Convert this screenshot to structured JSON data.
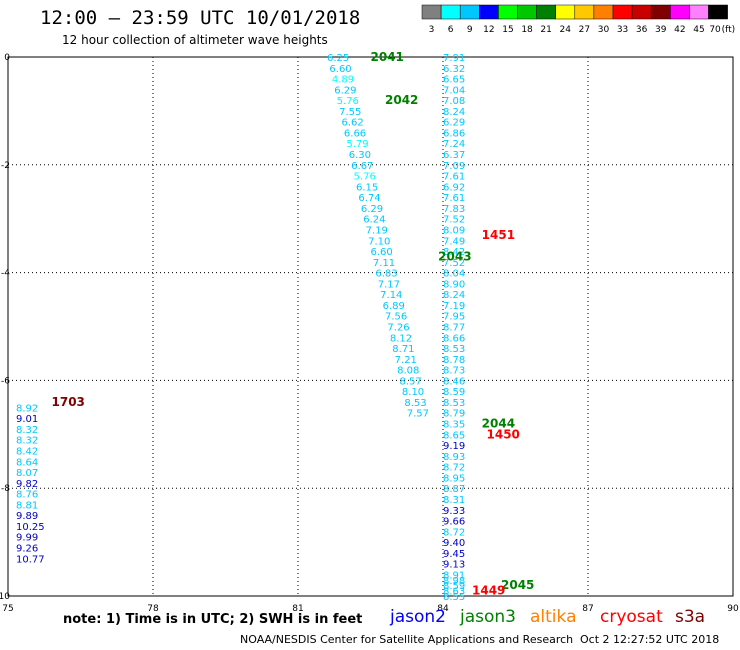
{
  "title": "12:00 – 23:59 UTC 10/01/2018",
  "subtitle": "12 hour collection of altimeter wave heights",
  "color_scale": {
    "labels": [
      "3",
      "6",
      "9",
      "12",
      "15",
      "18",
      "21",
      "24",
      "27",
      "30",
      "33",
      "36",
      "39",
      "42",
      "45",
      "70"
    ],
    "unit": "(ft)",
    "colors": [
      "#808080",
      "#00ffff",
      "#00c8ff",
      "#0000ff",
      "#00ff00",
      "#00c800",
      "#008000",
      "#ffff00",
      "#ffc800",
      "#ff8000",
      "#ff0000",
      "#c80000",
      "#800000",
      "#ff00ff",
      "#ff80ff",
      "#000000"
    ]
  },
  "chart_data": {
    "type": "scatter",
    "xlim": [
      75,
      90
    ],
    "ylim": [
      0,
      -10
    ],
    "x_ticks": [
      "75",
      "78",
      "81",
      "84",
      "87",
      "90"
    ],
    "y_ticks": [
      "0",
      "-2",
      "-4",
      "-6",
      "-8",
      "-10"
    ],
    "grid": true,
    "points": [
      {
        "x": 81.6,
        "y": 0.0,
        "v": "6.25",
        "c": "#00c8ff"
      },
      {
        "x": 81.65,
        "y": -0.2,
        "v": "6.60",
        "c": "#00c8ff"
      },
      {
        "x": 81.7,
        "y": -0.4,
        "v": "4.89",
        "c": "#00ffff"
      },
      {
        "x": 81.75,
        "y": -0.6,
        "v": "6.29",
        "c": "#00c8ff"
      },
      {
        "x": 81.8,
        "y": -0.8,
        "v": "5.76",
        "c": "#00ffff"
      },
      {
        "x": 81.85,
        "y": -1.0,
        "v": "7.55",
        "c": "#00c8ff"
      },
      {
        "x": 81.9,
        "y": -1.2,
        "v": "6.62",
        "c": "#00c8ff"
      },
      {
        "x": 81.95,
        "y": -1.4,
        "v": "6.66",
        "c": "#00c8ff"
      },
      {
        "x": 82.0,
        "y": -1.6,
        "v": "5.79",
        "c": "#00ffff"
      },
      {
        "x": 82.05,
        "y": -1.8,
        "v": "6.30",
        "c": "#00c8ff"
      },
      {
        "x": 82.1,
        "y": -2.0,
        "v": "6.67",
        "c": "#00c8ff"
      },
      {
        "x": 82.15,
        "y": -2.2,
        "v": "5.76",
        "c": "#00ffff"
      },
      {
        "x": 82.2,
        "y": -2.4,
        "v": "6.15",
        "c": "#00c8ff"
      },
      {
        "x": 82.25,
        "y": -2.6,
        "v": "6.74",
        "c": "#00c8ff"
      },
      {
        "x": 82.3,
        "y": -2.8,
        "v": "6.29",
        "c": "#00c8ff"
      },
      {
        "x": 82.35,
        "y": -3.0,
        "v": "6.24",
        "c": "#00c8ff"
      },
      {
        "x": 82.4,
        "y": -3.2,
        "v": "7.19",
        "c": "#00c8ff"
      },
      {
        "x": 82.45,
        "y": -3.4,
        "v": "7.10",
        "c": "#00c8ff"
      },
      {
        "x": 82.5,
        "y": -3.6,
        "v": "6.60",
        "c": "#00c8ff"
      },
      {
        "x": 82.55,
        "y": -3.8,
        "v": "7.11",
        "c": "#00c8ff"
      },
      {
        "x": 82.6,
        "y": -4.0,
        "v": "6.83",
        "c": "#00c8ff"
      },
      {
        "x": 82.65,
        "y": -4.2,
        "v": "7.17",
        "c": "#00c8ff"
      },
      {
        "x": 82.7,
        "y": -4.4,
        "v": "7.14",
        "c": "#00c8ff"
      },
      {
        "x": 82.75,
        "y": -4.6,
        "v": "6.89",
        "c": "#00c8ff"
      },
      {
        "x": 82.8,
        "y": -4.8,
        "v": "7.56",
        "c": "#00c8ff"
      },
      {
        "x": 82.85,
        "y": -5.0,
        "v": "7.26",
        "c": "#00c8ff"
      },
      {
        "x": 82.9,
        "y": -5.2,
        "v": "8.12",
        "c": "#00c8ff"
      },
      {
        "x": 82.95,
        "y": -5.4,
        "v": "8.71",
        "c": "#00c8ff"
      },
      {
        "x": 83.0,
        "y": -5.6,
        "v": "7.21",
        "c": "#00c8ff"
      },
      {
        "x": 83.05,
        "y": -5.8,
        "v": "8.08",
        "c": "#00c8ff"
      },
      {
        "x": 83.1,
        "y": -6.0,
        "v": "8.57",
        "c": "#00c8ff"
      },
      {
        "x": 83.15,
        "y": -6.2,
        "v": "8.10",
        "c": "#00c8ff"
      },
      {
        "x": 83.2,
        "y": -6.4,
        "v": "8.53",
        "c": "#00c8ff"
      },
      {
        "x": 83.25,
        "y": -6.6,
        "v": "7.57",
        "c": "#00c8ff"
      },
      {
        "x": 84.0,
        "y": 0.0,
        "v": "7.91",
        "c": "#00c8ff"
      },
      {
        "x": 84.0,
        "y": -0.2,
        "v": "6.32",
        "c": "#00c8ff"
      },
      {
        "x": 84.0,
        "y": -0.4,
        "v": "6.65",
        "c": "#00c8ff"
      },
      {
        "x": 84.0,
        "y": -0.6,
        "v": "7.04",
        "c": "#00c8ff"
      },
      {
        "x": 84.0,
        "y": -0.8,
        "v": "7.08",
        "c": "#00c8ff"
      },
      {
        "x": 84.0,
        "y": -1.0,
        "v": "8.24",
        "c": "#00c8ff"
      },
      {
        "x": 84.0,
        "y": -1.2,
        "v": "6.29",
        "c": "#00c8ff"
      },
      {
        "x": 84.0,
        "y": -1.4,
        "v": "6.86",
        "c": "#00c8ff"
      },
      {
        "x": 84.0,
        "y": -1.6,
        "v": "7.24",
        "c": "#00c8ff"
      },
      {
        "x": 84.0,
        "y": -1.8,
        "v": "6.37",
        "c": "#00c8ff"
      },
      {
        "x": 84.0,
        "y": -2.0,
        "v": "7.09",
        "c": "#00c8ff"
      },
      {
        "x": 84.0,
        "y": -2.2,
        "v": "7.61",
        "c": "#00c8ff"
      },
      {
        "x": 84.0,
        "y": -2.4,
        "v": "6.92",
        "c": "#00c8ff"
      },
      {
        "x": 84.0,
        "y": -2.6,
        "v": "7.61",
        "c": "#00c8ff"
      },
      {
        "x": 84.0,
        "y": -2.8,
        "v": "7.83",
        "c": "#00c8ff"
      },
      {
        "x": 84.0,
        "y": -3.0,
        "v": "7.52",
        "c": "#00c8ff"
      },
      {
        "x": 84.0,
        "y": -3.2,
        "v": "8.09",
        "c": "#00c8ff"
      },
      {
        "x": 84.0,
        "y": -3.4,
        "v": "7.49",
        "c": "#00c8ff"
      },
      {
        "x": 84.0,
        "y": -3.6,
        "v": "8.42",
        "c": "#00c8ff"
      },
      {
        "x": 84.0,
        "y": -3.8,
        "v": "7.52",
        "c": "#00c8ff"
      },
      {
        "x": 84.0,
        "y": -4.0,
        "v": "8.04",
        "c": "#00c8ff"
      },
      {
        "x": 84.0,
        "y": -4.2,
        "v": "8.90",
        "c": "#00c8ff"
      },
      {
        "x": 84.0,
        "y": -4.4,
        "v": "8.24",
        "c": "#00c8ff"
      },
      {
        "x": 84.0,
        "y": -4.6,
        "v": "7.19",
        "c": "#00c8ff"
      },
      {
        "x": 84.0,
        "y": -4.8,
        "v": "7.95",
        "c": "#00c8ff"
      },
      {
        "x": 84.0,
        "y": -5.0,
        "v": "8.77",
        "c": "#00c8ff"
      },
      {
        "x": 84.0,
        "y": -5.2,
        "v": "8.66",
        "c": "#00c8ff"
      },
      {
        "x": 84.0,
        "y": -5.4,
        "v": "8.53",
        "c": "#00c8ff"
      },
      {
        "x": 84.0,
        "y": -5.6,
        "v": "8.78",
        "c": "#00c8ff"
      },
      {
        "x": 84.0,
        "y": -5.8,
        "v": "8.73",
        "c": "#00c8ff"
      },
      {
        "x": 84.0,
        "y": -6.0,
        "v": "8.46",
        "c": "#00c8ff"
      },
      {
        "x": 84.0,
        "y": -6.2,
        "v": "8.59",
        "c": "#00c8ff"
      },
      {
        "x": 84.0,
        "y": -6.4,
        "v": "8.53",
        "c": "#00c8ff"
      },
      {
        "x": 84.0,
        "y": -6.6,
        "v": "8.79",
        "c": "#00c8ff"
      },
      {
        "x": 84.0,
        "y": -6.8,
        "v": "8.35",
        "c": "#00c8ff"
      },
      {
        "x": 84.0,
        "y": -7.0,
        "v": "8.65",
        "c": "#00c8ff"
      },
      {
        "x": 84.0,
        "y": -7.2,
        "v": "9.19",
        "c": "#0000c8"
      },
      {
        "x": 84.0,
        "y": -7.4,
        "v": "8.93",
        "c": "#00c8ff"
      },
      {
        "x": 84.0,
        "y": -7.6,
        "v": "8.72",
        "c": "#00c8ff"
      },
      {
        "x": 84.0,
        "y": -7.8,
        "v": "8.95",
        "c": "#00c8ff"
      },
      {
        "x": 84.0,
        "y": -8.0,
        "v": "8.87",
        "c": "#00c8ff"
      },
      {
        "x": 84.0,
        "y": -8.2,
        "v": "8.31",
        "c": "#00c8ff"
      },
      {
        "x": 84.0,
        "y": -8.4,
        "v": "9.33",
        "c": "#0000c8"
      },
      {
        "x": 84.0,
        "y": -8.6,
        "v": "9.66",
        "c": "#0000c8"
      },
      {
        "x": 84.0,
        "y": -8.8,
        "v": "8.72",
        "c": "#00c8ff"
      },
      {
        "x": 84.0,
        "y": -9.0,
        "v": "9.40",
        "c": "#0000c8"
      },
      {
        "x": 84.0,
        "y": -9.2,
        "v": "9.45",
        "c": "#0000c8"
      },
      {
        "x": 84.0,
        "y": -9.4,
        "v": "9.13",
        "c": "#0000c8"
      },
      {
        "x": 84.0,
        "y": -9.6,
        "v": "8.91",
        "c": "#00c8ff"
      },
      {
        "x": 84.0,
        "y": -9.7,
        "v": "8.98",
        "c": "#00c8ff"
      },
      {
        "x": 84.0,
        "y": -9.8,
        "v": "8.59",
        "c": "#00c8ff"
      },
      {
        "x": 84.0,
        "y": -9.9,
        "v": "8.63",
        "c": "#00c8ff"
      },
      {
        "x": 84.0,
        "y": -10.0,
        "v": "8.55",
        "c": "#00c8ff"
      },
      {
        "x": 75.0,
        "y": -6.5,
        "v": "8.92",
        "c": "#00c8ff"
      },
      {
        "x": 75.0,
        "y": -6.7,
        "v": "9.01",
        "c": "#0000c8"
      },
      {
        "x": 75.0,
        "y": -6.9,
        "v": "8.32",
        "c": "#00c8ff"
      },
      {
        "x": 75.0,
        "y": -7.1,
        "v": "8.32",
        "c": "#00c8ff"
      },
      {
        "x": 75.0,
        "y": -7.3,
        "v": "8.42",
        "c": "#00c8ff"
      },
      {
        "x": 75.0,
        "y": -7.5,
        "v": "8.64",
        "c": "#00c8ff"
      },
      {
        "x": 75.0,
        "y": -7.7,
        "v": "8.07",
        "c": "#00c8ff"
      },
      {
        "x": 75.0,
        "y": -7.9,
        "v": "9.82",
        "c": "#0000c8"
      },
      {
        "x": 75.0,
        "y": -8.1,
        "v": "8.76",
        "c": "#00c8ff"
      },
      {
        "x": 75.0,
        "y": -8.3,
        "v": "8.81",
        "c": "#00c8ff"
      },
      {
        "x": 75.0,
        "y": -8.5,
        "v": "9.89",
        "c": "#0000c8"
      },
      {
        "x": 75.0,
        "y": -8.7,
        "v": "10.25",
        "c": "#0000c8"
      },
      {
        "x": 75.0,
        "y": -8.9,
        "v": "9.99",
        "c": "#0000c8"
      },
      {
        "x": 75.0,
        "y": -9.1,
        "v": "9.26",
        "c": "#0000c8"
      },
      {
        "x": 75.0,
        "y": -9.3,
        "v": "10.77",
        "c": "#0000c8"
      }
    ],
    "time_labels": [
      {
        "x": 82.5,
        "y": 0.0,
        "t": "2041",
        "c": "#008000"
      },
      {
        "x": 82.8,
        "y": -0.8,
        "t": "2042",
        "c": "#008000"
      },
      {
        "x": 84.8,
        "y": -3.3,
        "t": "1451",
        "c": "#ff0000"
      },
      {
        "x": 83.9,
        "y": -3.7,
        "t": "2043",
        "c": "#008000"
      },
      {
        "x": 75.9,
        "y": -6.4,
        "t": "1703",
        "c": "#800000"
      },
      {
        "x": 84.8,
        "y": -6.8,
        "t": "2044",
        "c": "#008000"
      },
      {
        "x": 84.9,
        "y": -7.0,
        "t": "1450",
        "c": "#ff0000"
      },
      {
        "x": 85.2,
        "y": -9.8,
        "t": "2045",
        "c": "#008000"
      },
      {
        "x": 84.6,
        "y": -9.9,
        "t": "1449",
        "c": "#ff0000"
      }
    ]
  },
  "note": "note: 1) Time is in UTC; 2) SWH is in feet",
  "satellites": [
    {
      "name": "jason2",
      "color": "#0000ff"
    },
    {
      "name": "jason3",
      "color": "#008000"
    },
    {
      "name": "altika",
      "color": "#ff8000"
    },
    {
      "name": "cryosat",
      "color": "#ff0000"
    },
    {
      "name": "s3a",
      "color": "#800000"
    }
  ],
  "footer_left": "NOAA/NESDIS Center for Satellite Applications and Research",
  "footer_right": "Oct  2 12:27:52 UTC 2018"
}
